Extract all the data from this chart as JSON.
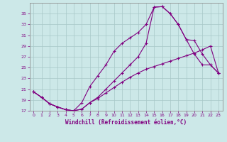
{
  "xlabel": "Windchill (Refroidissement éolien,°C)",
  "background_color": "#cce8e8",
  "line_color": "#800080",
  "grid_color": "#a8c8c8",
  "xlim": [
    -0.5,
    23.5
  ],
  "ylim": [
    17,
    37
  ],
  "xticks": [
    0,
    1,
    2,
    3,
    4,
    5,
    6,
    7,
    8,
    9,
    10,
    11,
    12,
    13,
    14,
    15,
    16,
    17,
    18,
    19,
    20,
    21,
    22,
    23
  ],
  "yticks": [
    17,
    19,
    21,
    23,
    25,
    27,
    29,
    31,
    33,
    35
  ],
  "line1_x": [
    0,
    1,
    2,
    3,
    4,
    5,
    6,
    7,
    8,
    9,
    10,
    11,
    12,
    13,
    14,
    15,
    16,
    17,
    18,
    19,
    20,
    21,
    22,
    23
  ],
  "line1_y": [
    20.5,
    19.5,
    18.3,
    17.7,
    17.2,
    17.0,
    17.3,
    18.5,
    19.3,
    20.3,
    21.3,
    22.3,
    23.2,
    24.0,
    24.7,
    25.2,
    25.7,
    26.2,
    26.7,
    27.2,
    27.7,
    28.3,
    29.0,
    24.0
  ],
  "line2_x": [
    0,
    1,
    2,
    3,
    4,
    5,
    6,
    7,
    8,
    9,
    10,
    11,
    12,
    13,
    14,
    15,
    16,
    17,
    18,
    19,
    20,
    21,
    22,
    23
  ],
  "line2_y": [
    20.5,
    19.5,
    18.3,
    17.7,
    17.2,
    17.0,
    18.5,
    21.5,
    23.5,
    25.5,
    28.0,
    29.5,
    30.5,
    31.5,
    33.0,
    36.2,
    36.3,
    35.0,
    33.0,
    30.2,
    30.0,
    27.5,
    25.5,
    24.0
  ],
  "line3_x": [
    0,
    1,
    2,
    3,
    4,
    5,
    6,
    7,
    8,
    9,
    10,
    11,
    12,
    13,
    14,
    15,
    16,
    17,
    18,
    19,
    20,
    21,
    22,
    23
  ],
  "line3_y": [
    20.5,
    19.5,
    18.3,
    17.7,
    17.2,
    17.0,
    17.3,
    18.5,
    19.5,
    21.0,
    22.5,
    24.0,
    25.5,
    27.0,
    29.5,
    36.2,
    36.3,
    35.0,
    33.0,
    30.2,
    27.5,
    25.5,
    25.5,
    24.0
  ]
}
